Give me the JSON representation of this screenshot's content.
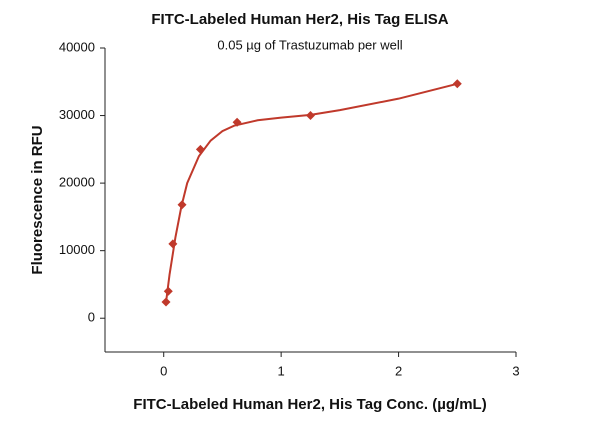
{
  "chart_data": {
    "type": "scatter",
    "title": "FITC-Labeled Human Her2, His Tag ELISA",
    "subtitle": "0.05 µg of Trastuzumab per well",
    "x_label": "FITC-Labeled Human Her2, His Tag Conc. (µg/mL)",
    "y_label": "Fluorescence in RFU",
    "xlim": [
      -0.5,
      3
    ],
    "xticks": [
      0,
      1,
      2,
      3
    ],
    "ylim": [
      -5000,
      40000
    ],
    "yticks": [
      0,
      10000,
      20000,
      30000,
      40000
    ],
    "grid": false,
    "series": [
      {
        "color": "#c0392b",
        "marker": "diamond",
        "x": [
          0.0195,
          0.039,
          0.078,
          0.156,
          0.3125,
          0.625,
          1.25,
          2.5
        ],
        "values": [
          2400,
          4000,
          11000,
          16800,
          25000,
          29000,
          30000,
          34700
        ]
      },
      {
        "color": "#c0392b",
        "marker": "line",
        "x": [
          0.02,
          0.05,
          0.1,
          0.15,
          0.2,
          0.3,
          0.4,
          0.5,
          0.6,
          0.8,
          1.0,
          1.25,
          1.5,
          2.0,
          2.5
        ],
        "values": [
          2400,
          6500,
          12000,
          16500,
          20000,
          24000,
          26300,
          27700,
          28500,
          29300,
          29700,
          30100,
          30800,
          32500,
          34700
        ]
      }
    ]
  }
}
